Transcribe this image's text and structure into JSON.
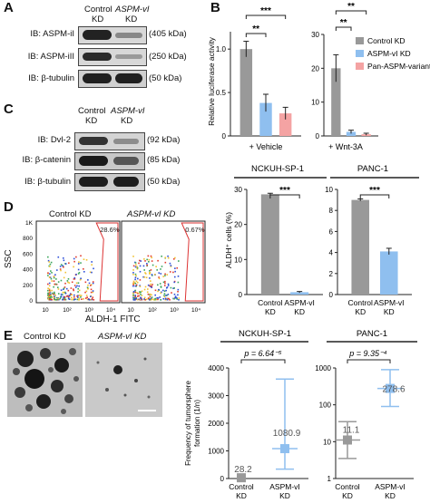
{
  "panels": {
    "A": "A",
    "B": "B",
    "C": "C",
    "D": "D",
    "E": "E"
  },
  "panelA": {
    "col1": "Control",
    "col1b": "KD",
    "col2": "ASPM-vI",
    "col2b": "KD",
    "rows": [
      {
        "label": "IB: ASPM-iI",
        "kda": "(405 kDa)"
      },
      {
        "label": "IB: ASPM-iII",
        "kda": "(250 kDa)"
      },
      {
        "label": "IB: β-tubulin",
        "kda": "(50 kDa)"
      }
    ]
  },
  "panelC": {
    "col1": "Control",
    "col1b": "KD",
    "col2": "ASPM-vI",
    "col2b": "KD",
    "rows": [
      {
        "label": "IB: Dvl-2",
        "kda": "(92 kDa)"
      },
      {
        "label": "IB: β-catenin",
        "kda": "(85 kDa)"
      },
      {
        "label": "IB: β-tubulin",
        "kda": "(50 kDa)"
      }
    ]
  },
  "panelD": {
    "ylabel": "SSC",
    "xlabel": "ALDH-1 FITC",
    "plots": [
      {
        "title": "Control KD",
        "pct": "28.6%"
      },
      {
        "title": "ASPM-vI KD",
        "pct": "0.67%"
      }
    ],
    "yticks": [
      "1K",
      "800",
      "600",
      "400",
      "200",
      "0"
    ],
    "xticks": [
      "10",
      "10²",
      "10³",
      "10⁴"
    ]
  },
  "panelE": {
    "photo_labels": [
      "Control KD",
      "ASPM-vI KD"
    ]
  },
  "chart_data": [
    {
      "type": "bar",
      "ylabel": "Relative luciferase activity",
      "xlabel": "+ Vehicle",
      "categories": [
        "Control KD",
        "ASPM-vI KD",
        "Pan-ASPM-variant KD"
      ],
      "values": [
        1.0,
        0.38,
        0.26
      ],
      "errors": [
        0.09,
        0.1,
        0.07
      ],
      "ylim": [
        0,
        1.2
      ],
      "yticks": [
        "0",
        "0.5",
        "1.0"
      ],
      "sig": [
        "***",
        "**"
      ]
    },
    {
      "type": "bar",
      "xlabel": "+ Wnt-3A",
      "categories": [
        "Control KD",
        "ASPM-vI KD",
        "Pan-ASPM-variant KD"
      ],
      "values": [
        20,
        1.2,
        0.5
      ],
      "errors": [
        4,
        0.5,
        0.3
      ],
      "ylim": [
        0,
        30
      ],
      "yticks": [
        "0",
        "10",
        "20",
        "30"
      ],
      "sig": [
        "**",
        "**"
      ],
      "legend": [
        "Control KD",
        "ASPM-vI KD",
        "Pan-ASPM-variant KD"
      ],
      "legend_pos": "top-right",
      "colors": [
        "#999999",
        "#8fbfef",
        "#f4a3a3"
      ]
    },
    {
      "type": "bar",
      "title": "NCKUH-SP-1",
      "ylabel": "ALDH⁺ cells (%)",
      "categories": [
        "Control KD",
        "ASPM-vI KD"
      ],
      "values": [
        28.6,
        0.67
      ],
      "errors": [
        0.3,
        0.2
      ],
      "ylim": [
        0,
        30
      ],
      "yticks": [
        "0",
        "10",
        "20",
        "30"
      ],
      "sig": "***"
    },
    {
      "type": "bar",
      "title": "PANC-1",
      "categories": [
        "Control KD",
        "ASPM-vI KD"
      ],
      "values": [
        9.0,
        4.1
      ],
      "errors": [
        0.1,
        0.3
      ],
      "ylim": [
        0,
        10
      ],
      "yticks": [
        "0",
        "2",
        "4",
        "6",
        "8",
        "10"
      ],
      "sig": "***"
    },
    {
      "type": "scatter",
      "title": "NCKUH-SP-1",
      "ylabel": "Frequency of tumorsphere formation (1/n)",
      "categories": [
        "Control KD",
        "ASPM-vI KD"
      ],
      "values": [
        28.2,
        1080.9
      ],
      "ci_low": [
        0,
        340
      ],
      "ci_high": [
        0,
        3600
      ],
      "ylim": [
        0,
        4000
      ],
      "yticks": [
        "0",
        "1000",
        "2000",
        "3000",
        "4000"
      ],
      "pvalue": "p = 6.64⁻⁵"
    },
    {
      "type": "scatter",
      "title": "PANC-1",
      "categories": [
        "Control KD",
        "ASPM-vI KD"
      ],
      "values": [
        11.1,
        278.6
      ],
      "ci_low": [
        3.5,
        90
      ],
      "ci_high": [
        35,
        900
      ],
      "ylim": [
        1,
        1000
      ],
      "scale": "log",
      "yticks": [
        "1",
        "10",
        "100",
        "1000"
      ],
      "pvalue": "p = 9.35⁻⁴"
    }
  ]
}
